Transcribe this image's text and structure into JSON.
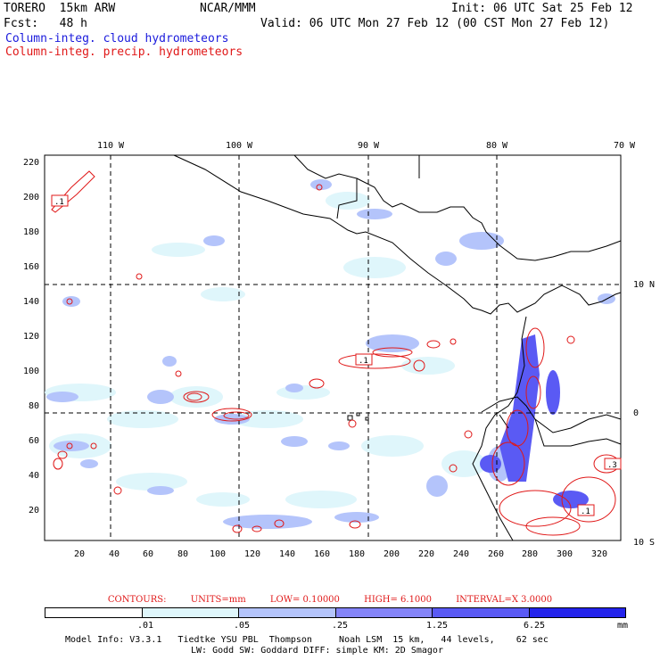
{
  "header": {
    "model": "TORERO  15km ARW",
    "org": "NCAR/MMM",
    "init": "Init: 06 UTC Sat 25 Feb 12",
    "fcst": "Fcst:   48 h",
    "valid": "Valid: 06 UTC Mon 27 Feb 12 (00 CST Mon 27 Feb 12)",
    "field_cloud": "Column-integ. cloud hydrometeors",
    "field_precip": "Column-integ. precip. hydrometeors"
  },
  "map": {
    "lon_labels": [
      "110 W",
      "100 W",
      "90 W",
      "80 W",
      "70 W"
    ],
    "lat_labels_right": [
      "10 N",
      "0",
      "10 S"
    ],
    "y_ticks": [
      "220",
      "200",
      "180",
      "160",
      "140",
      "120",
      "100",
      "80",
      "60",
      "40",
      "20"
    ],
    "x_ticks": [
      "20",
      "40",
      "60",
      "80",
      "100",
      "120",
      "140",
      "160",
      "180",
      "200",
      "220",
      "240",
      "260",
      "280",
      "300",
      "320"
    ],
    "contour_labels": [
      ".1",
      ".1",
      ".1",
      ".3",
      ".1"
    ]
  },
  "contours_info": {
    "label": "CONTOURS:",
    "units": "UNITS=mm",
    "low": "LOW= 0.10000",
    "high": "HIGH= 6.1000",
    "interval": "INTERVAL=X 3.0000"
  },
  "legend": {
    "ticks": [
      ".01",
      ".05",
      ".25",
      "1.25",
      "6.25"
    ],
    "unit": "mm",
    "colors": [
      "#ffffff",
      "#dff6fb",
      "#b4c4fb",
      "#8484f8",
      "#5a5af4",
      "#2424ec"
    ]
  },
  "footer": {
    "line1": "Model Info: V3.3.1   Tiedtke YSU PBL  Thompson     Noah LSM  15 km,   44 levels,    62 sec",
    "line2": "LW: Godd SW: Goddard DIFF: simple KM: 2D Smagor"
  }
}
